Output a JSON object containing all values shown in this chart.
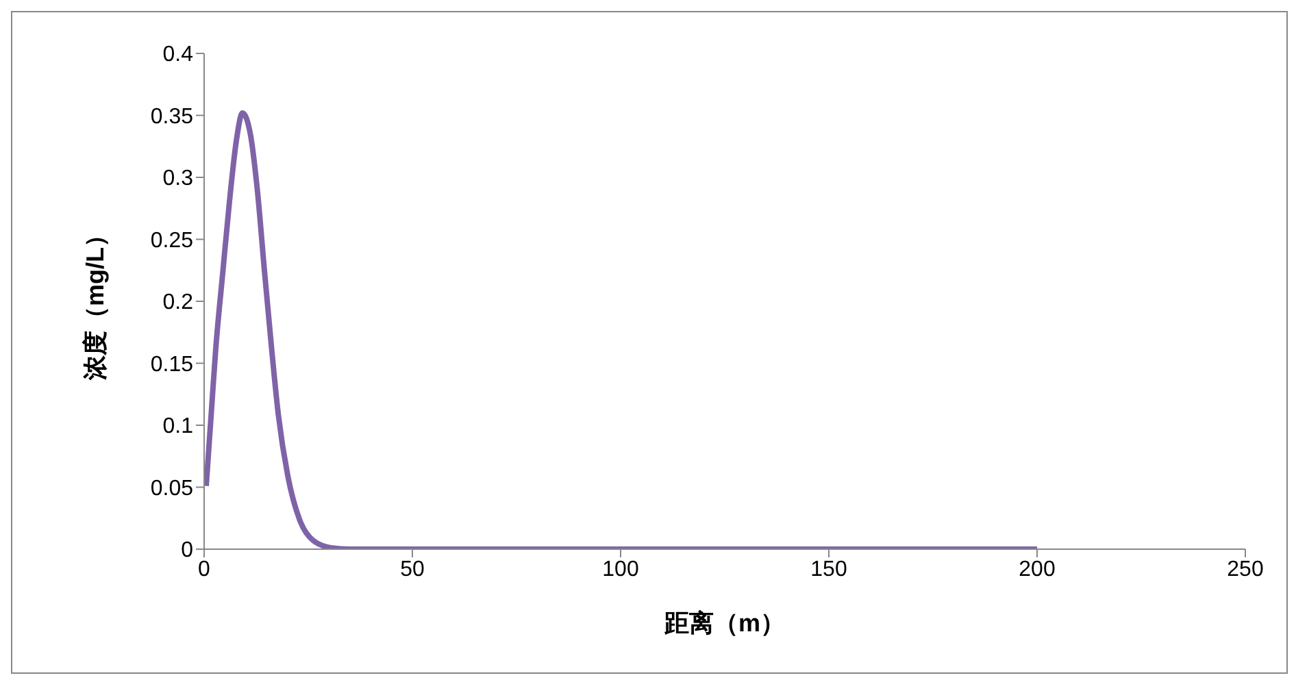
{
  "chart_data": {
    "type": "line",
    "xlabel": "距离（m）",
    "ylabel": "浓度（mg/L）",
    "series": [
      {
        "color": "#7f63a8",
        "x": [
          0.5,
          1.7,
          2.8,
          4.5,
          6.1,
          7.8,
          9.2,
          11.1,
          12.8,
          14.5,
          16.2,
          17.8,
          20.1,
          22.9,
          26.2,
          30.7,
          35,
          50,
          100,
          150,
          200
        ],
        "values": [
          0.051,
          0.109,
          0.162,
          0.224,
          0.281,
          0.331,
          0.352,
          0.335,
          0.289,
          0.224,
          0.162,
          0.109,
          0.059,
          0.024,
          0.007,
          0.001,
          0,
          0,
          0,
          0,
          0
        ]
      }
    ],
    "xlim": [
      0,
      250
    ],
    "xticks": [
      0,
      50,
      100,
      150,
      200,
      250
    ],
    "ylim": [
      0,
      0.4
    ],
    "yticks": [
      0,
      0.05,
      0.1,
      0.15,
      0.2,
      0.25,
      0.3,
      0.35,
      0.4
    ],
    "grid": false,
    "legend": false,
    "marker": "none",
    "line_style": "solid"
  }
}
